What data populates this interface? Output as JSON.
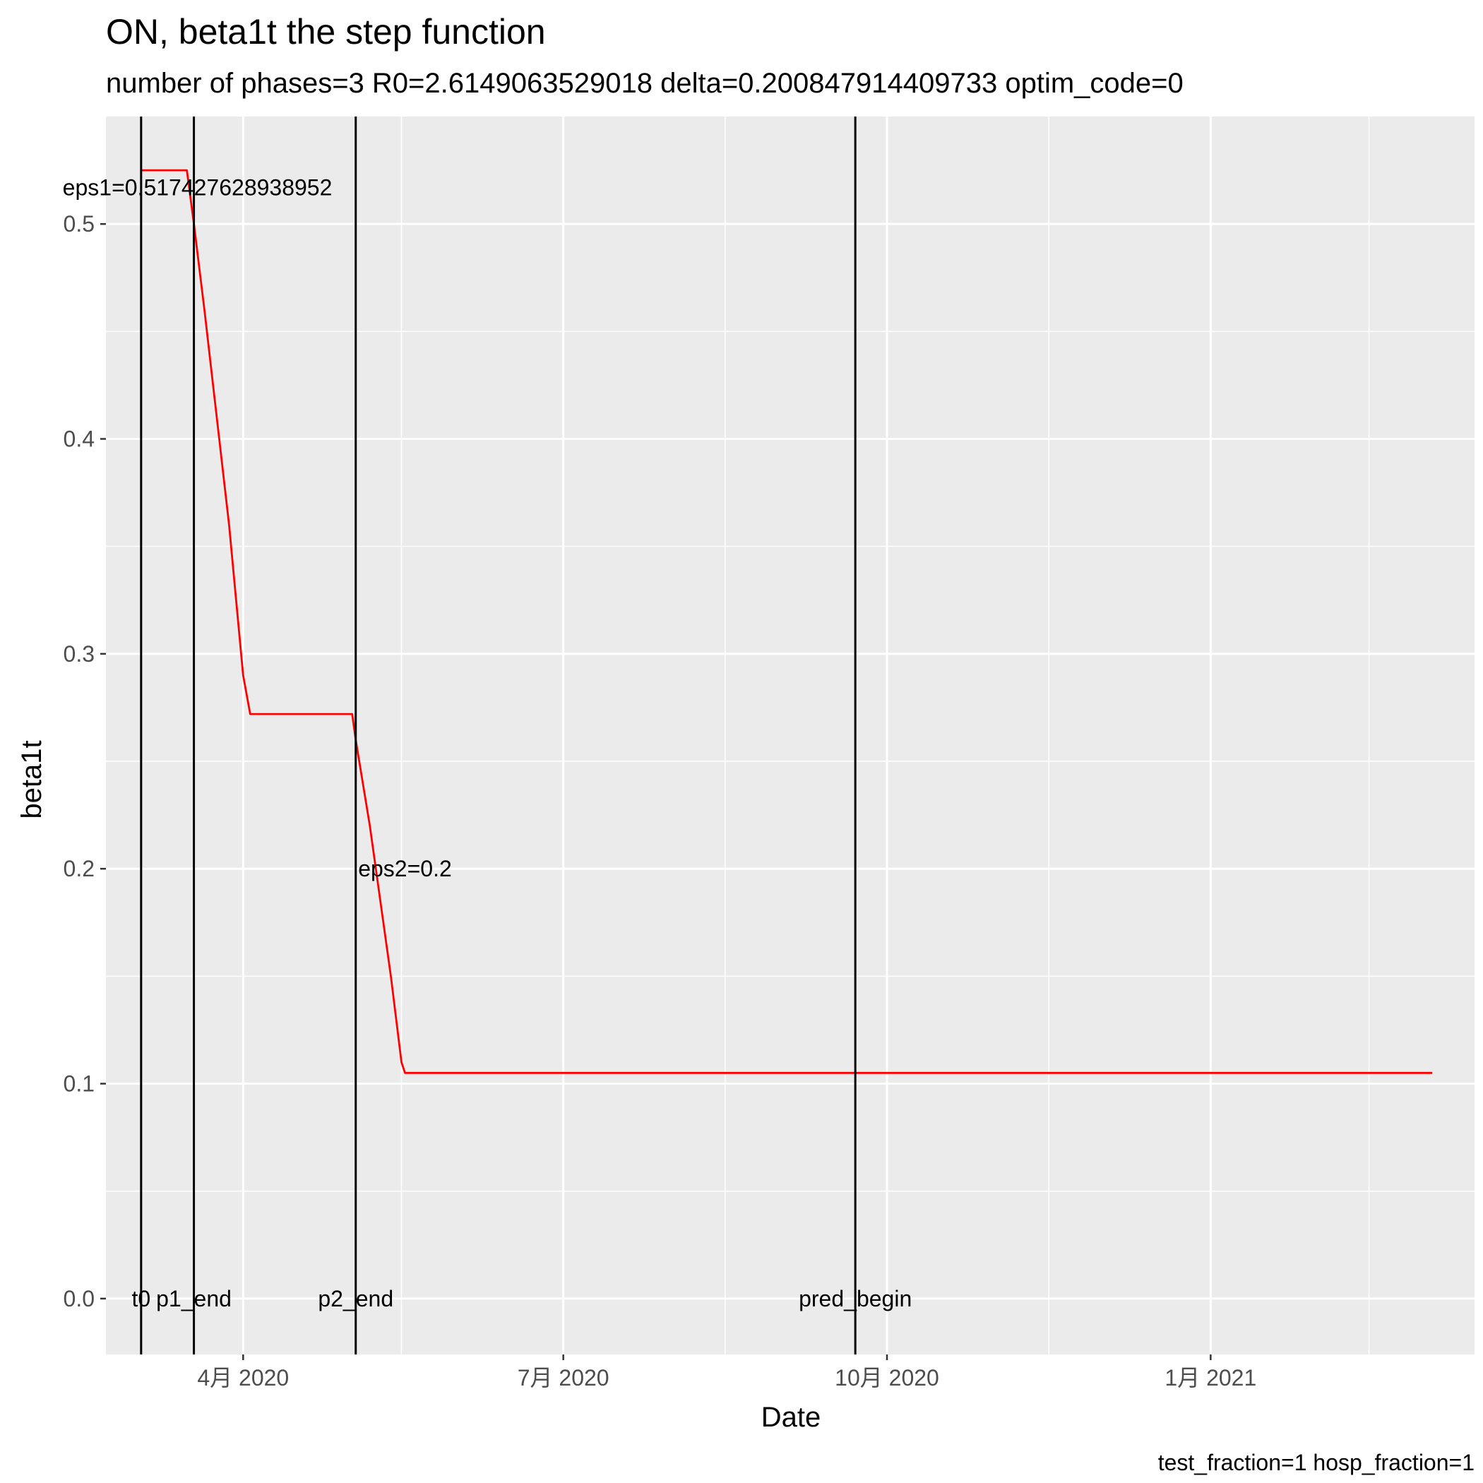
{
  "chart_data": {
    "type": "line",
    "title": "ON, beta1t the step function",
    "subtitle": "number of phases=3   R0=2.6149063529018   delta=0.200847914409733   optim_code=0",
    "caption": "test_fraction=1   hosp_fraction=1",
    "xlabel": "Date",
    "ylabel": "beta1t",
    "xlim": [
      "2020-02-22",
      "2021-03-17"
    ],
    "ylim": [
      -0.026,
      0.55
    ],
    "grid": true,
    "x_ticks": [
      {
        "date": "2020-04-01",
        "label": "4月 2020"
      },
      {
        "date": "2020-07-01",
        "label": "7月 2020"
      },
      {
        "date": "2020-10-01",
        "label": "10月 2020"
      },
      {
        "date": "2021-01-01",
        "label": "1月 2021"
      }
    ],
    "x_minor_dates": [
      "2020-02-15",
      "2020-05-16",
      "2020-08-16",
      "2020-11-16",
      "2021-02-15"
    ],
    "y_ticks": [
      0.0,
      0.1,
      0.2,
      0.3,
      0.4,
      0.5
    ],
    "y_tick_labels": [
      "0.0",
      "0.1",
      "0.2",
      "0.3",
      "0.4",
      "0.5"
    ],
    "y_minor": [
      0.05,
      0.15,
      0.25,
      0.35,
      0.45
    ],
    "series": [
      {
        "color": "#ff0000",
        "points": [
          {
            "date": "2020-03-03",
            "value": 0.525
          },
          {
            "date": "2020-03-16",
            "value": 0.525
          },
          {
            "date": "2020-03-18",
            "value": 0.5
          },
          {
            "date": "2020-03-21",
            "value": 0.46
          },
          {
            "date": "2020-03-28",
            "value": 0.36
          },
          {
            "date": "2020-04-01",
            "value": 0.29
          },
          {
            "date": "2020-04-03",
            "value": 0.272
          },
          {
            "date": "2020-05-02",
            "value": 0.272
          },
          {
            "date": "2020-05-03",
            "value": 0.26
          },
          {
            "date": "2020-05-07",
            "value": 0.22
          },
          {
            "date": "2020-05-13",
            "value": 0.15
          },
          {
            "date": "2020-05-16",
            "value": 0.11
          },
          {
            "date": "2020-05-17",
            "value": 0.105
          },
          {
            "date": "2021-03-05",
            "value": 0.105
          }
        ]
      }
    ],
    "vlines": [
      {
        "date": "2020-03-03",
        "label": "t0"
      },
      {
        "date": "2020-03-18",
        "label": "p1_end"
      },
      {
        "date": "2020-05-03",
        "label": "p2_end"
      },
      {
        "date": "2020-09-22",
        "label": "pred_begin"
      }
    ],
    "annotations": [
      {
        "text": "eps1=0.517427628938952",
        "date": "2020-03-19",
        "value": 0.517
      },
      {
        "text": "eps2=0.2",
        "date": "2020-05-17",
        "value": 0.2
      }
    ]
  }
}
